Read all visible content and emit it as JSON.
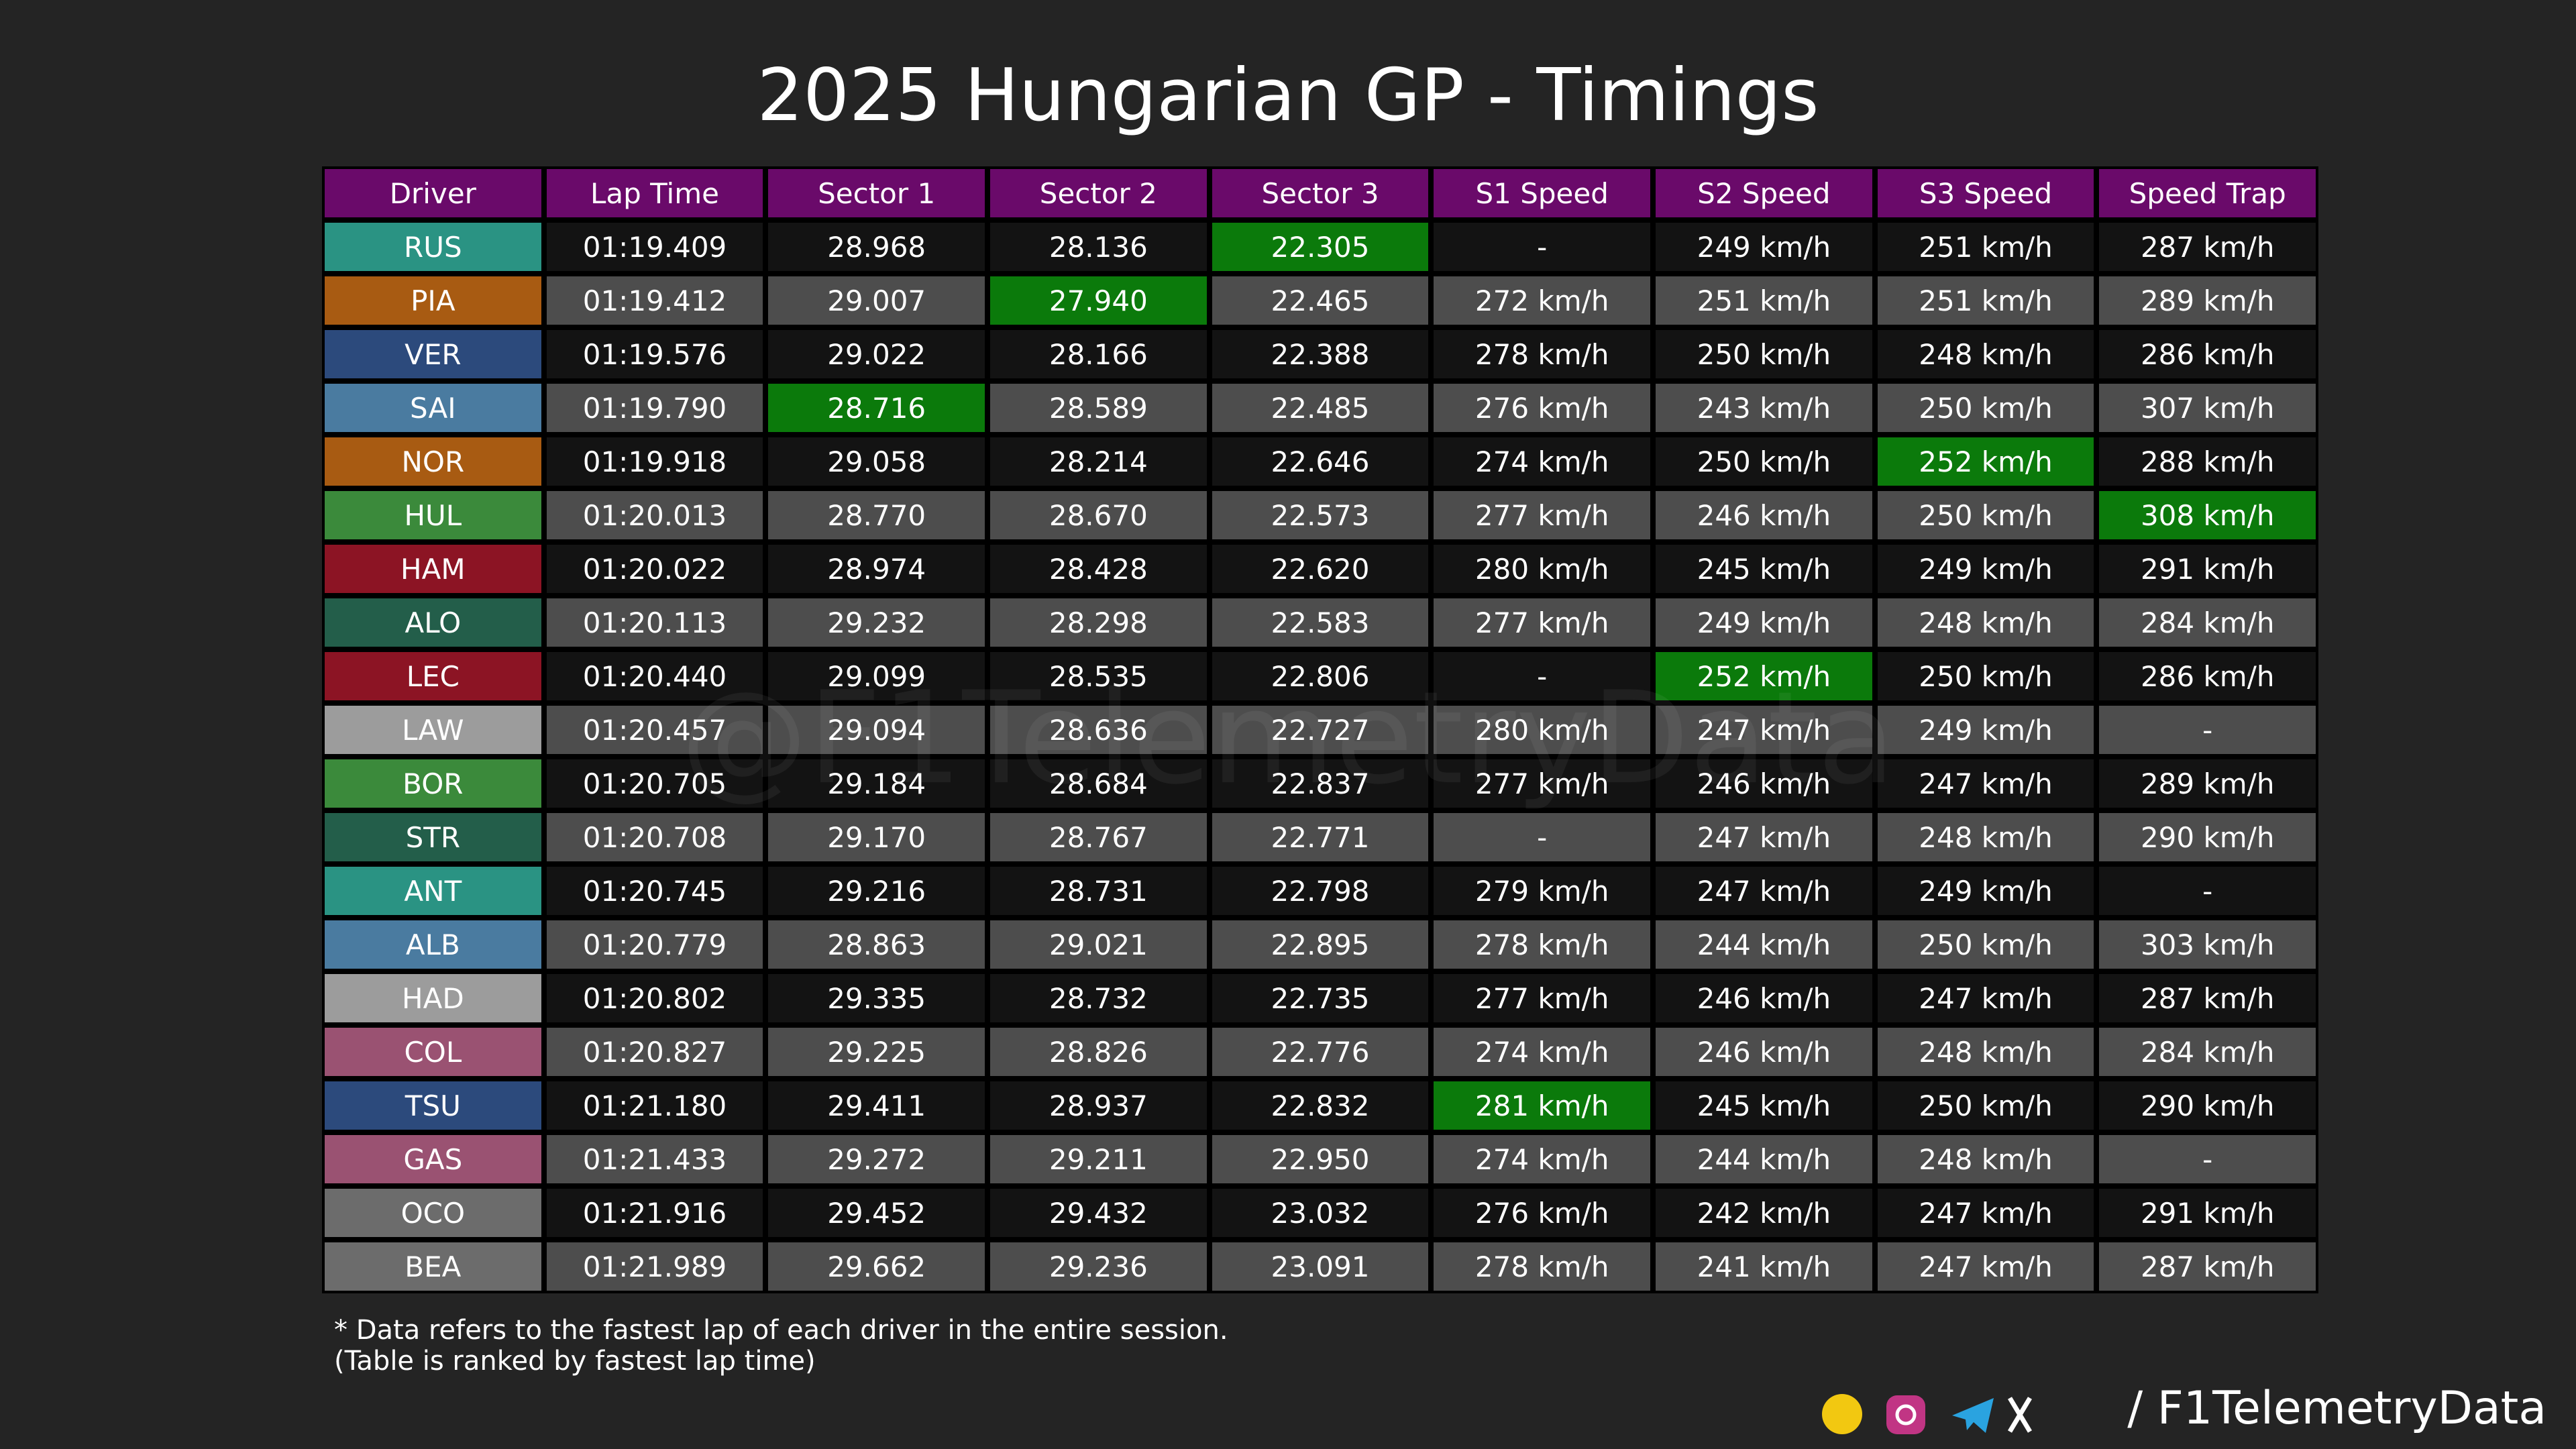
{
  "title": "2025 Hungarian GP - Timings",
  "table": {
    "headers": [
      "Driver",
      "Lap Time",
      "Sector 1",
      "Sector 2",
      "Sector 3",
      "S1 Speed",
      "S2 Speed",
      "S3 Speed",
      "Speed Trap"
    ],
    "highlight_color": "#0b7a0b",
    "rows": [
      {
        "color": "#2a9383",
        "best": [
          4
        ],
        "cells": [
          "RUS",
          "01:19.409",
          "28.968",
          "28.136",
          "22.305",
          "-",
          "249 km/h",
          "251 km/h",
          "287 km/h"
        ]
      },
      {
        "color": "#a85b12",
        "best": [
          3
        ],
        "cells": [
          "PIA",
          "01:19.412",
          "29.007",
          "27.940",
          "22.465",
          "272 km/h",
          "251 km/h",
          "251 km/h",
          "289 km/h"
        ]
      },
      {
        "color": "#2c4a7c",
        "best": [],
        "cells": [
          "VER",
          "01:19.576",
          "29.022",
          "28.166",
          "22.388",
          "278 km/h",
          "250 km/h",
          "248 km/h",
          "286 km/h"
        ]
      },
      {
        "color": "#4a7ba0",
        "best": [
          2
        ],
        "cells": [
          "SAI",
          "01:19.790",
          "28.716",
          "28.589",
          "22.485",
          "276 km/h",
          "243 km/h",
          "250 km/h",
          "307 km/h"
        ]
      },
      {
        "color": "#a85b12",
        "best": [
          7
        ],
        "cells": [
          "NOR",
          "01:19.918",
          "29.058",
          "28.214",
          "22.646",
          "274 km/h",
          "250 km/h",
          "252 km/h",
          "288 km/h"
        ]
      },
      {
        "color": "#3b8a3b",
        "best": [
          8
        ],
        "cells": [
          "HUL",
          "01:20.013",
          "28.770",
          "28.670",
          "22.573",
          "277 km/h",
          "246 km/h",
          "250 km/h",
          "308 km/h"
        ]
      },
      {
        "color": "#8c1424",
        "best": [],
        "cells": [
          "HAM",
          "01:20.022",
          "28.974",
          "28.428",
          "22.620",
          "280 km/h",
          "245 km/h",
          "249 km/h",
          "291 km/h"
        ]
      },
      {
        "color": "#235e4a",
        "best": [],
        "cells": [
          "ALO",
          "01:20.113",
          "29.232",
          "28.298",
          "22.583",
          "277 km/h",
          "249 km/h",
          "248 km/h",
          "284 km/h"
        ]
      },
      {
        "color": "#8c1424",
        "best": [
          6
        ],
        "cells": [
          "LEC",
          "01:20.440",
          "29.099",
          "28.535",
          "22.806",
          "-",
          "252 km/h",
          "250 km/h",
          "286 km/h"
        ]
      },
      {
        "color": "#9c9c9c",
        "best": [],
        "cells": [
          "LAW",
          "01:20.457",
          "29.094",
          "28.636",
          "22.727",
          "280 km/h",
          "247 km/h",
          "249 km/h",
          "-"
        ]
      },
      {
        "color": "#3b8a3b",
        "best": [],
        "cells": [
          "BOR",
          "01:20.705",
          "29.184",
          "28.684",
          "22.837",
          "277 km/h",
          "246 km/h",
          "247 km/h",
          "289 km/h"
        ]
      },
      {
        "color": "#235e4a",
        "best": [],
        "cells": [
          "STR",
          "01:20.708",
          "29.170",
          "28.767",
          "22.771",
          "-",
          "247 km/h",
          "248 km/h",
          "290 km/h"
        ]
      },
      {
        "color": "#2a9383",
        "best": [],
        "cells": [
          "ANT",
          "01:20.745",
          "29.216",
          "28.731",
          "22.798",
          "279 km/h",
          "247 km/h",
          "249 km/h",
          "-"
        ]
      },
      {
        "color": "#4a7ba0",
        "best": [],
        "cells": [
          "ALB",
          "01:20.779",
          "28.863",
          "29.021",
          "22.895",
          "278 km/h",
          "244 km/h",
          "250 km/h",
          "303 km/h"
        ]
      },
      {
        "color": "#9c9c9c",
        "best": [],
        "cells": [
          "HAD",
          "01:20.802",
          "29.335",
          "28.732",
          "22.735",
          "277 km/h",
          "246 km/h",
          "247 km/h",
          "287 km/h"
        ]
      },
      {
        "color": "#9a5272",
        "best": [],
        "cells": [
          "COL",
          "01:20.827",
          "29.225",
          "28.826",
          "22.776",
          "274 km/h",
          "246 km/h",
          "248 km/h",
          "284 km/h"
        ]
      },
      {
        "color": "#2c4a7c",
        "best": [
          5
        ],
        "cells": [
          "TSU",
          "01:21.180",
          "29.411",
          "28.937",
          "22.832",
          "281 km/h",
          "245 km/h",
          "250 km/h",
          "290 km/h"
        ]
      },
      {
        "color": "#9a5272",
        "best": [],
        "cells": [
          "GAS",
          "01:21.433",
          "29.272",
          "29.211",
          "22.950",
          "274 km/h",
          "244 km/h",
          "248 km/h",
          "-"
        ]
      },
      {
        "color": "#6c6c6c",
        "best": [],
        "cells": [
          "OCO",
          "01:21.916",
          "29.452",
          "29.432",
          "23.032",
          "276 km/h",
          "242 km/h",
          "247 km/h",
          "291 km/h"
        ]
      },
      {
        "color": "#6c6c6c",
        "best": [],
        "cells": [
          "BEA",
          "01:21.989",
          "29.662",
          "29.236",
          "23.091",
          "278 km/h",
          "241 km/h",
          "247 km/h",
          "287 km/h"
        ]
      }
    ]
  },
  "watermark": "@F1TelemetryData",
  "footnotes": [
    "* Data refers to the fastest lap of each driver in the entire session.",
    "(Table is ranked by fastest lap time)"
  ],
  "handle": "/ F1TelemetryData"
}
